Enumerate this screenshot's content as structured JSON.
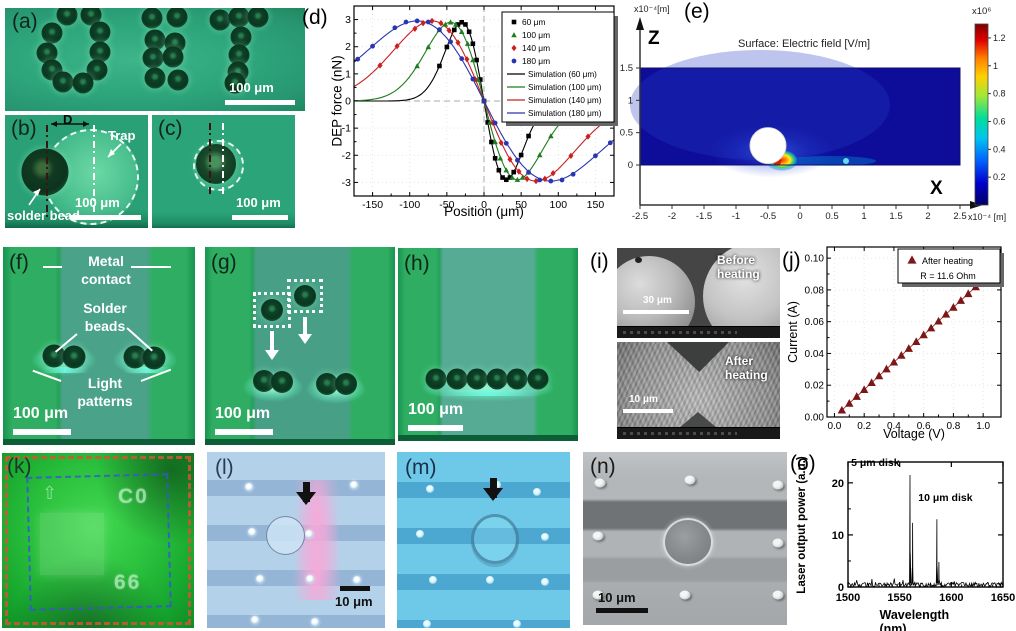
{
  "panels": {
    "a": {
      "label": "(a)",
      "scale_bar": "100 μm",
      "bead_centers": [
        [
          62,
          7
        ],
        [
          86,
          7
        ],
        [
          47,
          25
        ],
        [
          95,
          24
        ],
        [
          42,
          45
        ],
        [
          95,
          44
        ],
        [
          47,
          62
        ],
        [
          92,
          62
        ],
        [
          58,
          74
        ],
        [
          78,
          75
        ],
        [
          147,
          10
        ],
        [
          172,
          9
        ],
        [
          150,
          32
        ],
        [
          170,
          35
        ],
        [
          148,
          50
        ],
        [
          168,
          49
        ],
        [
          150,
          70
        ],
        [
          173,
          72
        ],
        [
          215,
          12
        ],
        [
          234,
          9
        ],
        [
          253,
          9
        ],
        [
          236,
          29
        ],
        [
          234,
          47
        ],
        [
          233,
          64
        ],
        [
          230,
          75
        ]
      ]
    },
    "b": {
      "label": "(b)",
      "d_label": "D",
      "trap_label": "Trap",
      "bead_label": "solder bead",
      "scale_bar": "100 μm"
    },
    "c": {
      "label": "(c)",
      "scale_bar": "100 μm"
    },
    "d": {
      "label": "(d)"
    },
    "e": {
      "label": "(e)",
      "title": "Surface: Electric field  [V/m]",
      "z_axis_label": "Z",
      "x_axis_label": "X",
      "z_axis_unit": "x10⁻⁴[m]",
      "x_axis_unit": "x10⁻⁴ [m]",
      "colorbar_unit": "x10⁶",
      "colorbar_ticks": [
        "1.2",
        "1",
        "0.8",
        "0.6",
        "0.4",
        "0.2"
      ],
      "z_ticks": [
        "1.5",
        "1",
        "0.5",
        "0"
      ],
      "x_ticks": [
        "-2.5",
        "-2",
        "-1.5",
        "-1",
        "-0.5",
        "0",
        "0.5",
        "1",
        "1.5",
        "2",
        "2.5"
      ]
    },
    "f": {
      "label": "(f)",
      "metal_contact_label": "Metal contact",
      "solder_beads_label": "Solder beads",
      "light_patterns_label": "Light patterns",
      "scale_bar": "100 μm",
      "bead_centers": [
        [
          51,
          109
        ],
        [
          71,
          110
        ],
        [
          132,
          110
        ],
        [
          151,
          111
        ]
      ]
    },
    "g": {
      "label": "(g)",
      "scale_bar": "100 μm",
      "bead_centers": [
        [
          59,
          134
        ],
        [
          77,
          135
        ],
        [
          122,
          137
        ],
        [
          141,
          137
        ]
      ],
      "boxed_bead_centers": [
        [
          67,
          63
        ],
        [
          100,
          49
        ]
      ]
    },
    "h": {
      "label": "(h)",
      "scale_bar": "100 μm",
      "bead_centers": [
        [
          38,
          131
        ],
        [
          59,
          131
        ],
        [
          79,
          131
        ],
        [
          99,
          131
        ],
        [
          119,
          131
        ],
        [
          140,
          131
        ]
      ]
    },
    "i": {
      "label": "(i)",
      "before": {
        "caption": "Before heating",
        "scale_bar": "30 μm"
      },
      "after": {
        "caption": "After heating",
        "scale_bar": "10 μm"
      }
    },
    "j": {
      "label": "(j)"
    },
    "k": {
      "label": "(k)",
      "mark_top": "C0",
      "mark_bottom": "66"
    },
    "l": {
      "label": "(l)",
      "scale_bar": "10 μm",
      "post_centers": [
        [
          42,
          35
        ],
        [
          147,
          33
        ],
        [
          45,
          80
        ],
        [
          102,
          82
        ],
        [
          53,
          127
        ],
        [
          103,
          127
        ],
        [
          150,
          128
        ],
        [
          48,
          168
        ],
        [
          108,
          170
        ]
      ]
    },
    "m": {
      "label": "(m)",
      "post_centers": [
        [
          33,
          37
        ],
        [
          100,
          33
        ],
        [
          140,
          40
        ],
        [
          23,
          82
        ],
        [
          148,
          85
        ],
        [
          36,
          128
        ],
        [
          93,
          128
        ],
        [
          148,
          130
        ],
        [
          30,
          172
        ],
        [
          120,
          172
        ]
      ]
    },
    "n": {
      "label": "(n)",
      "scale_bar": "10 μm",
      "post_centers": [
        [
          17,
          31
        ],
        [
          107,
          28
        ],
        [
          195,
          33
        ],
        [
          15,
          84
        ],
        [
          195,
          91
        ],
        [
          15,
          143
        ],
        [
          102,
          143
        ],
        [
          195,
          143
        ]
      ]
    },
    "o": {
      "label": "(o)"
    }
  },
  "chart_data": [
    {
      "id": "d",
      "type": "line+scatter",
      "title": "",
      "xlabel": "Position (μm)",
      "ylabel": "DEP force (nN)",
      "xlim": [
        -175,
        175
      ],
      "ylim": [
        -3.5,
        3.5
      ],
      "xticks": [
        -150,
        -100,
        -50,
        0,
        50,
        100,
        150
      ],
      "yticks": [
        -3,
        -2,
        -1,
        0,
        1,
        2,
        3
      ],
      "zero_lines": true,
      "grid": "dotted",
      "legend_position": "top-right",
      "series": [
        {
          "name": "60 μm",
          "marker": "square",
          "color": "#000000",
          "points": [
            [
              -60,
              1.29
            ],
            [
              -50,
              1.99
            ],
            [
              -40,
              2.62
            ],
            [
              -35,
              2.82
            ],
            [
              -30,
              2.9
            ],
            [
              -25,
              2.82
            ],
            [
              -20,
              2.55
            ],
            [
              -15,
              2.11
            ],
            [
              -10,
              1.51
            ],
            [
              -5,
              0.79
            ],
            [
              0,
              0
            ],
            [
              5,
              -0.79
            ],
            [
              10,
              -1.51
            ],
            [
              15,
              -2.11
            ],
            [
              20,
              -2.55
            ],
            [
              25,
              -2.82
            ],
            [
              30,
              -2.9
            ],
            [
              35,
              -2.82
            ],
            [
              40,
              -2.62
            ],
            [
              50,
              -1.99
            ],
            [
              60,
              -1.29
            ]
          ]
        },
        {
          "name": "100 μm",
          "marker": "triangle",
          "color": "#1e7d1e",
          "points": [
            [
              -90,
              1.29
            ],
            [
              -75,
              1.99
            ],
            [
              -60,
              2.62
            ],
            [
              -52,
              2.82
            ],
            [
              -45,
              2.9
            ],
            [
              -38,
              2.82
            ],
            [
              -30,
              2.55
            ],
            [
              -22,
              2.11
            ],
            [
              -15,
              1.51
            ],
            [
              -8,
              0.79
            ],
            [
              0,
              0
            ],
            [
              8,
              -0.79
            ],
            [
              15,
              -1.51
            ],
            [
              22,
              -2.11
            ],
            [
              30,
              -2.55
            ],
            [
              38,
              -2.82
            ],
            [
              45,
              -2.9
            ],
            [
              52,
              -2.82
            ],
            [
              60,
              -2.62
            ],
            [
              75,
              -1.99
            ],
            [
              90,
              -1.29
            ]
          ]
        },
        {
          "name": "140 μm",
          "marker": "diamond",
          "color": "#cc2020",
          "points": [
            [
              -140,
              1.31
            ],
            [
              -117,
              2.02
            ],
            [
              -93,
              2.66
            ],
            [
              -82,
              2.87
            ],
            [
              -70,
              2.95
            ],
            [
              -58,
              2.87
            ],
            [
              -47,
              2.6
            ],
            [
              -35,
              2.15
            ],
            [
              -23,
              1.54
            ],
            [
              -12,
              0.8
            ],
            [
              0,
              0
            ],
            [
              12,
              -0.8
            ],
            [
              23,
              -1.54
            ],
            [
              35,
              -2.15
            ],
            [
              47,
              -2.6
            ],
            [
              58,
              -2.87
            ],
            [
              70,
              -2.95
            ],
            [
              82,
              -2.87
            ],
            [
              93,
              -2.66
            ],
            [
              117,
              -2.02
            ],
            [
              140,
              -1.31
            ]
          ]
        },
        {
          "name": "180 μm",
          "marker": "circle",
          "color": "#2a35b0",
          "points": [
            [
              -170,
              1.54
            ],
            [
              -150,
              2.02
            ],
            [
              -120,
              2.7
            ],
            [
              -105,
              2.91
            ],
            [
              -90,
              2.95
            ],
            [
              -75,
              2.91
            ],
            [
              -60,
              2.63
            ],
            [
              -45,
              2.18
            ],
            [
              -30,
              1.56
            ],
            [
              -15,
              0.81
            ],
            [
              0,
              0
            ],
            [
              15,
              -0.81
            ],
            [
              30,
              -1.56
            ],
            [
              45,
              -2.18
            ],
            [
              60,
              -2.63
            ],
            [
              75,
              -2.91
            ],
            [
              90,
              -2.95
            ],
            [
              105,
              -2.91
            ],
            [
              120,
              -2.7
            ],
            [
              150,
              -2.02
            ],
            [
              170,
              -1.54
            ]
          ]
        },
        {
          "name": "Simulation (60 μm)",
          "line": true,
          "color": "#000000",
          "model": {
            "peak_x": -30,
            "amplitude": 2.9
          }
        },
        {
          "name": "Simulation (100 μm)",
          "line": true,
          "color": "#1e7d1e",
          "model": {
            "peak_x": -45,
            "amplitude": 2.9
          }
        },
        {
          "name": "Simulation (140 μm)",
          "line": true,
          "color": "#cc2020",
          "model": {
            "peak_x": -70,
            "amplitude": 2.95
          }
        },
        {
          "name": "Simulation (180 μm)",
          "line": true,
          "color": "#2a35b0",
          "model": {
            "peak_x": -90,
            "amplitude": 2.95
          }
        }
      ]
    },
    {
      "id": "e",
      "type": "heatmap",
      "title": "Surface: Electric field  [V/m]",
      "x_range": [
        -2.5,
        2.5
      ],
      "z_range": [
        0,
        1.5
      ],
      "axis_unit": "x10⁻⁴ [m]",
      "colorbar": {
        "scale": "x10⁶",
        "unit": "V/m",
        "ticks": [
          1.2,
          1,
          0.8,
          0.6,
          0.4,
          0.2
        ],
        "max": 1.3,
        "min": 0
      },
      "particle": {
        "x": -0.5,
        "z": 0.3,
        "radius": 0.28
      },
      "hotspot": {
        "x": -0.32,
        "z": 0.05,
        "max_field_V_per_m": 1260000
      },
      "background_field_V_per_m": 100000
    },
    {
      "id": "j",
      "type": "scatter",
      "legend": [
        "After heating",
        "R = 11.6 Ohm"
      ],
      "xlabel": "Voltage (V)",
      "ylabel": "Current (A)",
      "xlim": [
        0,
        1.1
      ],
      "ylim": [
        0,
        0.105
      ],
      "xticks": [
        0,
        0.2,
        0.4,
        0.6,
        0.8,
        1
      ],
      "xtick_labels": [
        "0.0",
        "0.2",
        "0.4",
        "0.6",
        "0.8",
        "1.0"
      ],
      "yticks": [
        0,
        0.02,
        0.04,
        0.06,
        0.08,
        0.1
      ],
      "ytick_labels": [
        "0.00",
        "0.02",
        "0.04",
        "0.06",
        "0.08",
        "0.10"
      ],
      "marker": "triangle",
      "color": "#7d1616",
      "points": [
        [
          0.05,
          0.0043
        ],
        [
          0.1,
          0.0086
        ],
        [
          0.15,
          0.0129
        ],
        [
          0.2,
          0.0172
        ],
        [
          0.25,
          0.0216
        ],
        [
          0.3,
          0.0259
        ],
        [
          0.35,
          0.0302
        ],
        [
          0.4,
          0.0345
        ],
        [
          0.45,
          0.0388
        ],
        [
          0.5,
          0.0431
        ],
        [
          0.55,
          0.0474
        ],
        [
          0.6,
          0.0517
        ],
        [
          0.65,
          0.056
        ],
        [
          0.7,
          0.0603
        ],
        [
          0.75,
          0.0647
        ],
        [
          0.8,
          0.069
        ],
        [
          0.85,
          0.0733
        ],
        [
          0.9,
          0.0776
        ],
        [
          0.95,
          0.0819
        ],
        [
          1.0,
          0.0862
        ]
      ]
    },
    {
      "id": "o",
      "type": "line",
      "xlabel": "Wavelength (nm)",
      "ylabel": "Laser output power (a.u.)",
      "xlim": [
        1500,
        1650
      ],
      "ylim": [
        0,
        24
      ],
      "xticks": [
        1500,
        1550,
        1600,
        1650
      ],
      "yticks": [
        0,
        10,
        20
      ],
      "noise_level": 0.9,
      "peaks": [
        {
          "x": 1560,
          "height": 21.5,
          "label": "5 μm disk",
          "label_x": 1503,
          "label_y": 23.2
        },
        {
          "x": 1562.5,
          "height": 12.3
        },
        {
          "x": 1586,
          "height": 13,
          "label": "10 μm disk",
          "label_x": 1568,
          "label_y": 16.5
        },
        {
          "x": 1588,
          "height": 4.8
        }
      ]
    }
  ],
  "colors": {
    "microscopy_green": "#2ea67c",
    "bright_electrode_green": "#2fae63",
    "center_channel_green": "#4aa289",
    "chip_green": "#2cc23e",
    "pale_blue": "#b3d2ea",
    "cyan_blue": "#6ec9e9",
    "sem_gray": "#9a9a9a",
    "marker_dark_red": "#7d1616",
    "sim_black": "#000000",
    "sim_green": "#1e7d1e",
    "sim_red": "#cc2020",
    "sim_blue": "#2a35b0"
  }
}
